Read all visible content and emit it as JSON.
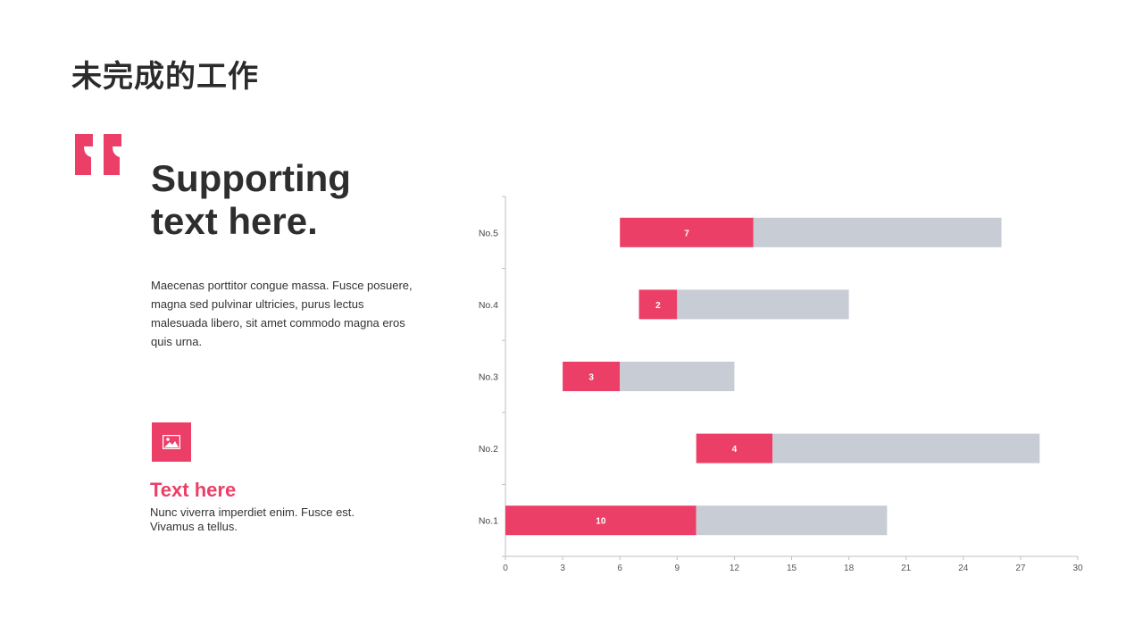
{
  "page": {
    "title": "未完成的工作"
  },
  "left": {
    "headline_line1": "Supporting",
    "headline_line2": "text here.",
    "body": "Maecenas porttitor congue massa. Fusce posuere, magna sed pulvinar ultricies, purus lectus malesuada libero, sit amet commodo magna eros quis urna.",
    "sub_title": "Text here",
    "sub_text": "Nunc viverra imperdiet enim. Fusce est. Vivamus a tellus."
  },
  "icons": {
    "quote": "quote-icon",
    "image": "image-icon"
  },
  "colors": {
    "accent": "#ec3f68",
    "bar_gray": "#c8ccd4",
    "text_dark": "#2e2e2e"
  },
  "chart_data": {
    "type": "bar",
    "orientation": "horizontal",
    "stacked": true,
    "categories": [
      "No.1",
      "No.2",
      "No.3",
      "No.4",
      "No.5"
    ],
    "series": [
      {
        "values": [
          0,
          10,
          3,
          7,
          6
        ],
        "color": "transparent"
      },
      {
        "values": [
          10,
          4,
          3,
          2,
          7
        ],
        "color": "#ec3f68",
        "show_labels": true
      },
      {
        "values": [
          10,
          14,
          6,
          9,
          13
        ],
        "color": "#c8ccd4"
      }
    ],
    "xlim": [
      0,
      30
    ],
    "xticks": [
      0,
      3,
      6,
      9,
      12,
      15,
      18,
      21,
      24,
      27,
      30
    ],
    "grid": false,
    "legend": "none"
  }
}
